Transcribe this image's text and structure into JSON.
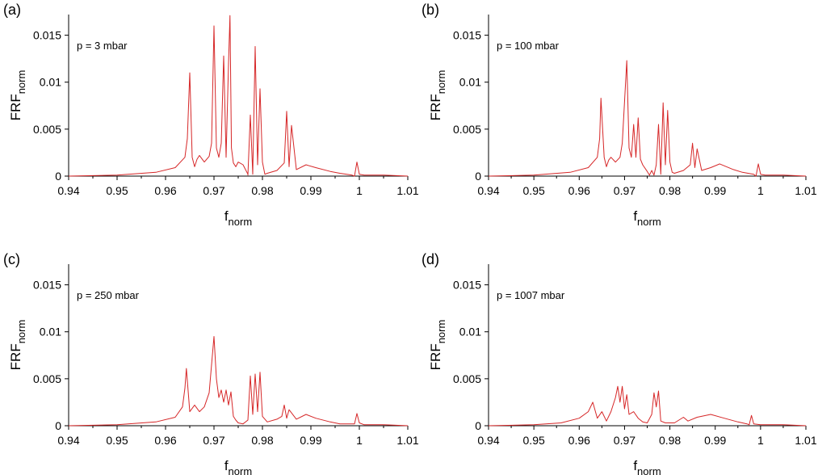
{
  "chart_data": [
    {
      "type": "line",
      "panel_label": "(a)",
      "annotation": "p = 3 mbar",
      "xlabel": "f",
      "xlabel_sub": "norm",
      "ylabel": "FRF",
      "ylabel_sub": "norm",
      "xlim": [
        0.94,
        1.01
      ],
      "ylim": [
        0,
        0.0172
      ],
      "xticks": [
        "0.94",
        "0.95",
        "0.96",
        "0.97",
        "0.98",
        "0.99",
        "1",
        "1.01"
      ],
      "xtick_values": [
        0.94,
        0.95,
        0.96,
        0.97,
        0.98,
        0.99,
        1.0,
        1.01
      ],
      "yticks": [
        "0",
        "0.005",
        "0.01",
        "0.015"
      ],
      "ytick_values": [
        0,
        0.005,
        0.01,
        0.015
      ],
      "series": [
        {
          "name": "FRF",
          "color": "#d62728",
          "x": [
            0.94,
            0.95,
            0.958,
            0.962,
            0.964,
            0.9645,
            0.965,
            0.9655,
            0.966,
            0.9665,
            0.967,
            0.968,
            0.969,
            0.9695,
            0.97,
            0.9705,
            0.971,
            0.9715,
            0.972,
            0.9725,
            0.973,
            0.9733,
            0.9736,
            0.974,
            0.9745,
            0.975,
            0.976,
            0.977,
            0.977,
            0.9775,
            0.978,
            0.9785,
            0.979,
            0.9795,
            0.98,
            0.9805,
            0.981,
            0.983,
            0.9845,
            0.985,
            0.9855,
            0.986,
            0.987,
            0.989,
            0.991,
            0.994,
            0.996,
            0.9985,
            0.999,
            0.9995,
            1.0,
            1.001,
            1.005,
            1.01
          ],
          "y": [
            0.0,
            0.0001,
            0.0004,
            0.0009,
            0.002,
            0.004,
            0.011,
            0.002,
            0.001,
            0.0018,
            0.0022,
            0.0015,
            0.0021,
            0.0035,
            0.016,
            0.003,
            0.002,
            0.0035,
            0.0128,
            0.002,
            0.012,
            0.0171,
            0.003,
            0.0014,
            0.001,
            0.0015,
            0.0012,
            0.0002,
            0.0001,
            0.0065,
            0.0002,
            0.0138,
            0.0012,
            0.0093,
            0.0015,
            0.0002,
            0.0003,
            0.0006,
            0.0014,
            0.0069,
            0.001,
            0.0054,
            0.0007,
            0.0012,
            0.0009,
            0.0005,
            0.0003,
            0.0001,
            0.0,
            0.0015,
            0.0002,
            0.0001,
            0.0001,
            0.0
          ]
        }
      ]
    },
    {
      "type": "line",
      "panel_label": "(b)",
      "annotation": "p = 100 mbar",
      "xlabel": "f",
      "xlabel_sub": "norm",
      "ylabel": "FRF",
      "ylabel_sub": "norm",
      "xlim": [
        0.94,
        1.01
      ],
      "ylim": [
        0,
        0.0172
      ],
      "xticks": [
        "0.94",
        "0.95",
        "0.96",
        "0.97",
        "0.98",
        "0.99",
        "1",
        "1.01"
      ],
      "xtick_values": [
        0.94,
        0.95,
        0.96,
        0.97,
        0.98,
        0.99,
        1.0,
        1.01
      ],
      "yticks": [
        "0",
        "0.005",
        "0.01",
        "0.015"
      ],
      "ytick_values": [
        0,
        0.005,
        0.01,
        0.015
      ],
      "series": [
        {
          "name": "FRF",
          "color": "#d62728",
          "x": [
            0.94,
            0.95,
            0.958,
            0.962,
            0.964,
            0.9645,
            0.9648,
            0.9655,
            0.966,
            0.9665,
            0.967,
            0.968,
            0.969,
            0.9695,
            0.9705,
            0.971,
            0.9715,
            0.972,
            0.9725,
            0.973,
            0.9735,
            0.974,
            0.975,
            0.9755,
            0.976,
            0.9765,
            0.977,
            0.9775,
            0.978,
            0.9785,
            0.979,
            0.9795,
            0.98,
            0.9805,
            0.981,
            0.983,
            0.9845,
            0.985,
            0.9855,
            0.986,
            0.987,
            0.989,
            0.991,
            0.994,
            0.996,
            0.9985,
            0.999,
            0.9995,
            1.0,
            1.001,
            1.005,
            1.01
          ],
          "y": [
            0.0,
            0.0001,
            0.0004,
            0.0009,
            0.002,
            0.004,
            0.0083,
            0.002,
            0.001,
            0.0017,
            0.002,
            0.0015,
            0.002,
            0.0035,
            0.0123,
            0.003,
            0.002,
            0.0055,
            0.002,
            0.0062,
            0.0018,
            0.0012,
            0.0005,
            0.0001,
            0.0006,
            0.0001,
            0.0012,
            0.0055,
            0.0002,
            0.0078,
            0.0012,
            0.007,
            0.0015,
            0.0004,
            0.0003,
            0.0006,
            0.0012,
            0.0035,
            0.0009,
            0.0029,
            0.0006,
            0.0009,
            0.0013,
            0.0007,
            0.0004,
            0.0002,
            0.0,
            0.0013,
            0.0002,
            0.0001,
            0.0001,
            0.0
          ]
        }
      ]
    },
    {
      "type": "line",
      "panel_label": "(c)",
      "annotation": "p = 250 mbar",
      "xlabel": "f",
      "xlabel_sub": "norm",
      "ylabel": "FRF",
      "ylabel_sub": "norm",
      "xlim": [
        0.94,
        1.01
      ],
      "ylim": [
        0,
        0.0172
      ],
      "xticks": [
        "0.94",
        "0.95",
        "0.96",
        "0.97",
        "0.98",
        "0.99",
        "1",
        "1.01"
      ],
      "xtick_values": [
        0.94,
        0.95,
        0.96,
        0.97,
        0.98,
        0.99,
        1.0,
        1.01
      ],
      "yticks": [
        "0",
        "0.005",
        "0.01",
        "0.015"
      ],
      "ytick_values": [
        0,
        0.005,
        0.01,
        0.015
      ],
      "series": [
        {
          "name": "FRF",
          "color": "#d62728",
          "x": [
            0.94,
            0.95,
            0.958,
            0.962,
            0.9635,
            0.964,
            0.9643,
            0.965,
            0.966,
            0.967,
            0.968,
            0.969,
            0.97,
            0.9705,
            0.971,
            0.9715,
            0.972,
            0.9725,
            0.973,
            0.9735,
            0.974,
            0.9745,
            0.975,
            0.976,
            0.977,
            0.9775,
            0.978,
            0.9785,
            0.979,
            0.9795,
            0.98,
            0.981,
            0.983,
            0.984,
            0.9845,
            0.985,
            0.9855,
            0.987,
            0.989,
            0.991,
            0.994,
            0.996,
            0.999,
            0.9995,
            1.0,
            1.001,
            1.005,
            1.01
          ],
          "y": [
            0.0,
            0.0001,
            0.0004,
            0.0009,
            0.002,
            0.004,
            0.0061,
            0.0015,
            0.0022,
            0.0015,
            0.002,
            0.0035,
            0.0095,
            0.005,
            0.003,
            0.0038,
            0.0025,
            0.0038,
            0.0022,
            0.0036,
            0.001,
            0.0006,
            0.0003,
            0.0002,
            0.0006,
            0.0053,
            0.0012,
            0.0055,
            0.0015,
            0.0057,
            0.001,
            0.0004,
            0.0007,
            0.001,
            0.0022,
            0.0008,
            0.0017,
            0.0007,
            0.0012,
            0.0008,
            0.0004,
            0.0002,
            0.0002,
            0.0013,
            0.0003,
            0.0001,
            0.0001,
            0.0
          ]
        }
      ]
    },
    {
      "type": "line",
      "panel_label": "(d)",
      "annotation": "p = 1007 mbar",
      "xlabel": "f",
      "xlabel_sub": "norm",
      "ylabel": "FRF",
      "ylabel_sub": "norm",
      "xlim": [
        0.94,
        1.01
      ],
      "ylim": [
        0,
        0.0172
      ],
      "xticks": [
        "0.94",
        "0.95",
        "0.96",
        "0.97",
        "0.98",
        "0.99",
        "1",
        "1.01"
      ],
      "xtick_values": [
        0.94,
        0.95,
        0.96,
        0.97,
        0.98,
        0.99,
        1.0,
        1.01
      ],
      "yticks": [
        "0",
        "0.005",
        "0.01",
        "0.015"
      ],
      "ytick_values": [
        0,
        0.005,
        0.01,
        0.015
      ],
      "series": [
        {
          "name": "FRF",
          "color": "#d62728",
          "x": [
            0.94,
            0.95,
            0.956,
            0.96,
            0.962,
            0.963,
            0.964,
            0.965,
            0.966,
            0.967,
            0.968,
            0.9685,
            0.969,
            0.9695,
            0.97,
            0.9705,
            0.971,
            0.972,
            0.973,
            0.974,
            0.975,
            0.976,
            0.9765,
            0.977,
            0.9775,
            0.978,
            0.979,
            0.981,
            0.983,
            0.984,
            0.986,
            0.989,
            0.992,
            0.995,
            0.997,
            0.9975,
            0.998,
            0.9985,
            1.0,
            1.005,
            1.01
          ],
          "y": [
            0.0,
            0.0001,
            0.0003,
            0.0008,
            0.0015,
            0.0025,
            0.0008,
            0.0015,
            0.0005,
            0.0015,
            0.003,
            0.0042,
            0.0025,
            0.0042,
            0.0018,
            0.0033,
            0.0012,
            0.0015,
            0.0008,
            0.0004,
            0.0003,
            0.0012,
            0.0035,
            0.002,
            0.0037,
            0.0005,
            0.0003,
            0.0003,
            0.0009,
            0.0005,
            0.0009,
            0.0012,
            0.0008,
            0.0004,
            0.0002,
            0.0001,
            0.0011,
            0.0002,
            0.0001,
            0.0001,
            0.0
          ]
        }
      ]
    }
  ]
}
